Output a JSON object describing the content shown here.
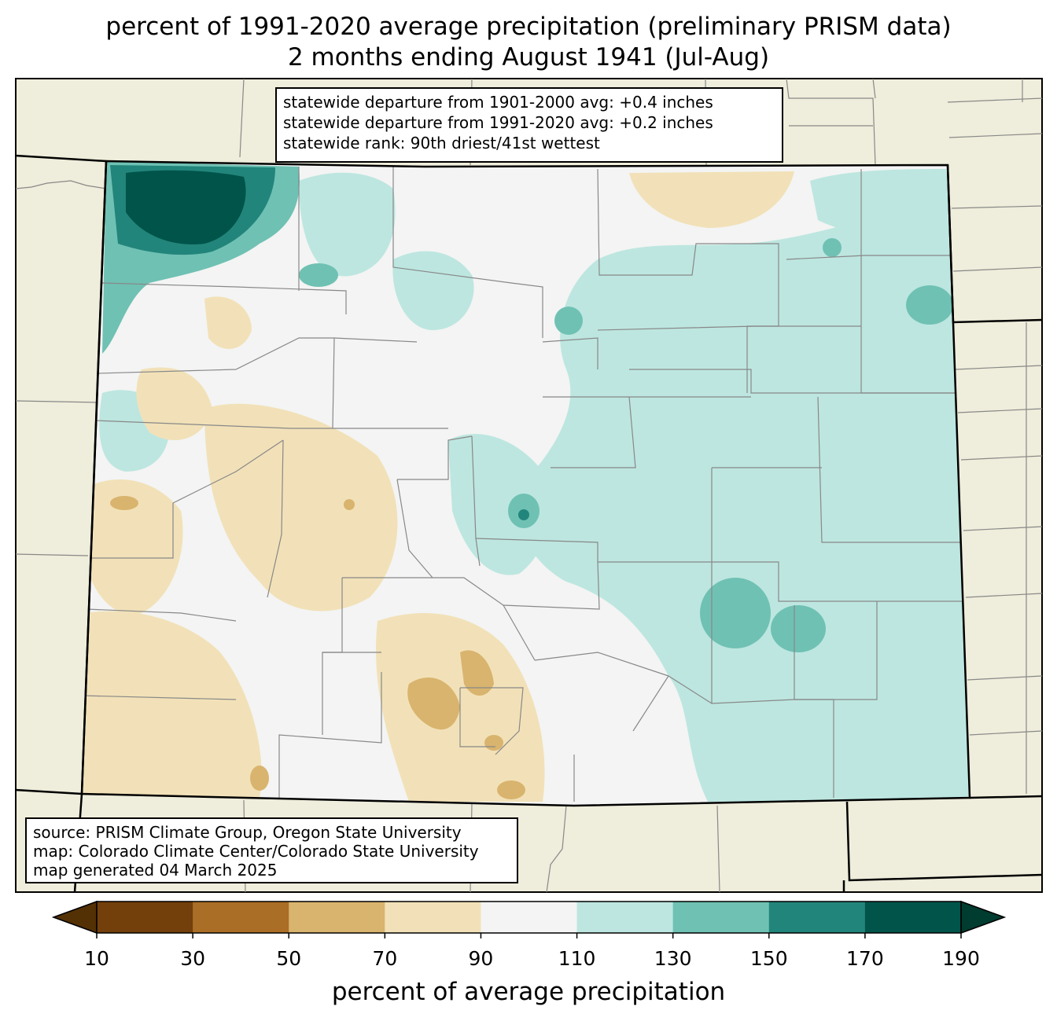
{
  "title": {
    "line1": "percent of 1991-2020 average precipitation (preliminary PRISM data)",
    "line2": "2 months ending August 1941 (Jul-Aug)"
  },
  "stats": {
    "line1": "statewide departure from 1901-2000 avg: +0.4 inches",
    "line2": "statewide departure from 1991-2020 avg: +0.2 inches",
    "line3": "statewide rank: 90th driest/41st wettest"
  },
  "source": {
    "line1": "source: PRISM Climate Group, Oregon State University",
    "line2": "map: Colorado Climate Center/Colorado State University",
    "line3": "map generated 04 March 2025"
  },
  "colorbar": {
    "label": "percent of average precipitation",
    "ticks": [
      "10",
      "30",
      "50",
      "70",
      "90",
      "110",
      "130",
      "150",
      "170",
      "190"
    ],
    "under_color": "#543005",
    "over_color": "#003c30",
    "colors": [
      "#733f0b",
      "#ab6e26",
      "#d9b46e",
      "#f2e1b8",
      "#f3f4f3",
      "#bde6e0",
      "#6fc1b3",
      "#22857b",
      "#00544a"
    ]
  },
  "map_colors": {
    "land_outside": "#efeddb",
    "state_fill": "#f3f4f3"
  }
}
